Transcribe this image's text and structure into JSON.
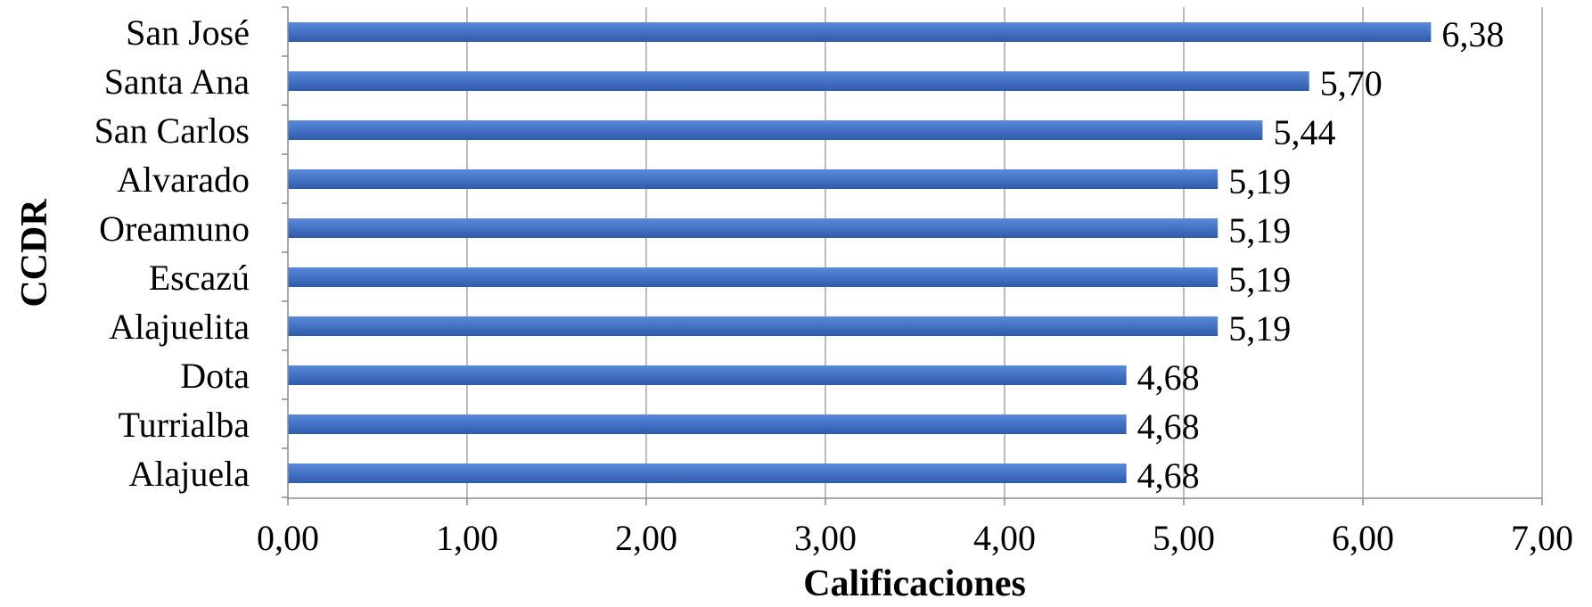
{
  "chart_data": {
    "type": "bar",
    "orientation": "horizontal",
    "title": "",
    "xlabel": "Calificaciones",
    "ylabel": "CCDR",
    "categories": [
      "San José",
      "Santa Ana",
      "San Carlos",
      "Alvarado",
      "Oreamuno",
      "Escazú",
      "Alajuelita",
      "Dota",
      "Turrialba",
      "Alajuela"
    ],
    "values": [
      6.38,
      5.7,
      5.44,
      5.19,
      5.19,
      5.19,
      5.19,
      4.68,
      4.68,
      4.68
    ],
    "value_labels": [
      "6,38",
      "5,70",
      "5,44",
      "5,19",
      "5,19",
      "5,19",
      "5,19",
      "4,68",
      "4,68",
      "4,68"
    ],
    "xlim": [
      0,
      7
    ],
    "xticks": [
      0,
      1,
      2,
      3,
      4,
      5,
      6,
      7
    ],
    "xtick_labels": [
      "0,00",
      "1,00",
      "2,00",
      "3,00",
      "4,00",
      "5,00",
      "6,00",
      "7,00"
    ],
    "grid": "vertical",
    "legend": "none",
    "bar_color": "#4472c4",
    "bar_color_light": "#5b8ad8",
    "bar_color_dark": "#2f5aa8"
  }
}
